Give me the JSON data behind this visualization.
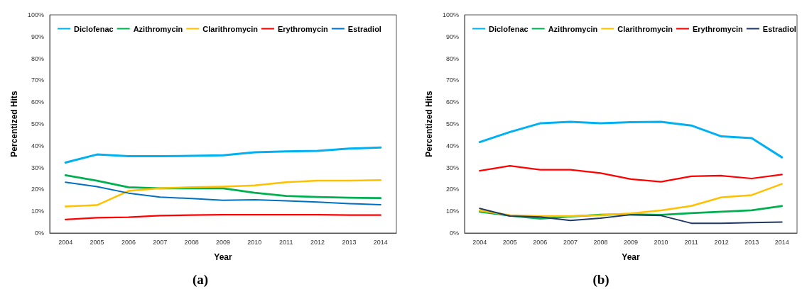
{
  "chart_data": [
    {
      "type": "line",
      "xlabel": "Year",
      "ylabel": "Percentized Hits",
      "annotations": [
        "(a)"
      ],
      "categories": [
        "2004",
        "2005",
        "2006",
        "2007",
        "2008",
        "2009",
        "2010",
        "2011",
        "2012",
        "2013",
        "2014"
      ],
      "ylim": [
        0,
        100
      ],
      "yticks": [
        {
          "value": 0,
          "label": "0%"
        },
        {
          "value": 10,
          "label": "10%"
        },
        {
          "value": 20,
          "label": "20%"
        },
        {
          "value": 30,
          "label": "30%"
        },
        {
          "value": 40,
          "label": "40%"
        },
        {
          "value": 50,
          "label": "50%"
        },
        {
          "value": 60,
          "label": "60%"
        },
        {
          "value": 70,
          "label": "70%"
        },
        {
          "value": 80,
          "label": "80%"
        },
        {
          "value": 90,
          "label": "90%"
        },
        {
          "value": 100,
          "label": "100%"
        }
      ],
      "grid": false,
      "legend": "top",
      "marker": "none",
      "line_style": "solid",
      "series": [
        {
          "name": "Diclofenac",
          "color": "#00b0f0",
          "values": [
            32.3,
            36,
            35.2,
            35.2,
            35.4,
            35.6,
            37,
            37.4,
            37.7,
            38.7,
            39.2
          ]
        },
        {
          "name": "Azithromycin",
          "color": "#00b050",
          "values": [
            26.5,
            24,
            21,
            20.5,
            20.5,
            20.5,
            18.5,
            17,
            16.5,
            16.2,
            16
          ]
        },
        {
          "name": "Clarithromycin",
          "color": "#ffc000",
          "values": [
            12.2,
            12.8,
            19.3,
            20.5,
            21,
            21.3,
            21.8,
            23.3,
            24,
            24,
            24.3
          ]
        },
        {
          "name": "Erythromycin",
          "color": "#ff0000",
          "values": [
            6.2,
            7,
            7.3,
            8,
            8.2,
            8.4,
            8.4,
            8.4,
            8.4,
            8.2,
            8.2
          ]
        },
        {
          "name": "Estradiol",
          "color": "#0070c0",
          "values": [
            23.3,
            21.3,
            18.3,
            16.5,
            15.8,
            15,
            15.3,
            14.8,
            14.2,
            13.5,
            13
          ]
        }
      ]
    },
    {
      "type": "line",
      "xlabel": "Year",
      "ylabel": "Percentized Hits",
      "annotations": [
        "(b)"
      ],
      "categories": [
        "2004",
        "2005",
        "2006",
        "2007",
        "2008",
        "2009",
        "2010",
        "2011",
        "2012",
        "2013",
        "2014"
      ],
      "ylim": [
        0,
        100
      ],
      "yticks": [
        {
          "value": 0,
          "label": "0%"
        },
        {
          "value": 10,
          "label": "10%"
        },
        {
          "value": 20,
          "label": "20%"
        },
        {
          "value": 30,
          "label": "30%"
        },
        {
          "value": 40,
          "label": "40%"
        },
        {
          "value": 50,
          "label": "50%"
        },
        {
          "value": 60,
          "label": "60%"
        },
        {
          "value": 70,
          "label": "70%"
        },
        {
          "value": 80,
          "label": "80%"
        },
        {
          "value": 90,
          "label": "90%"
        },
        {
          "value": 100,
          "label": "100%"
        }
      ],
      "grid": false,
      "legend": "top",
      "marker": "none",
      "line_style": "solid",
      "series": [
        {
          "name": "Diclofenac",
          "color": "#00b0f0",
          "values": [
            41.7,
            46.3,
            50.3,
            51,
            50.3,
            50.8,
            51,
            49.3,
            44.3,
            43.5,
            34.7
          ]
        },
        {
          "name": "Azithromycin",
          "color": "#00b050",
          "values": [
            9.8,
            8,
            6.6,
            7.6,
            8.4,
            8.6,
            8.3,
            9.1,
            9.8,
            10.4,
            12.4
          ]
        },
        {
          "name": "Clarithromycin",
          "color": "#ffc000",
          "values": [
            10.3,
            8.2,
            7.8,
            7.8,
            8.2,
            9,
            10.4,
            12.4,
            16.4,
            17.4,
            22.5
          ]
        },
        {
          "name": "Erythromycin",
          "color": "#ff0000",
          "values": [
            28.5,
            30.8,
            29,
            29,
            27.5,
            24.7,
            23.5,
            26,
            26.3,
            25,
            26.8
          ]
        },
        {
          "name": "Estradiol",
          "color": "#1f3864",
          "values": [
            11.3,
            7.8,
            7.4,
            5.8,
            6.8,
            8.4,
            8,
            4.5,
            4.5,
            4.8,
            5
          ]
        }
      ]
    }
  ]
}
